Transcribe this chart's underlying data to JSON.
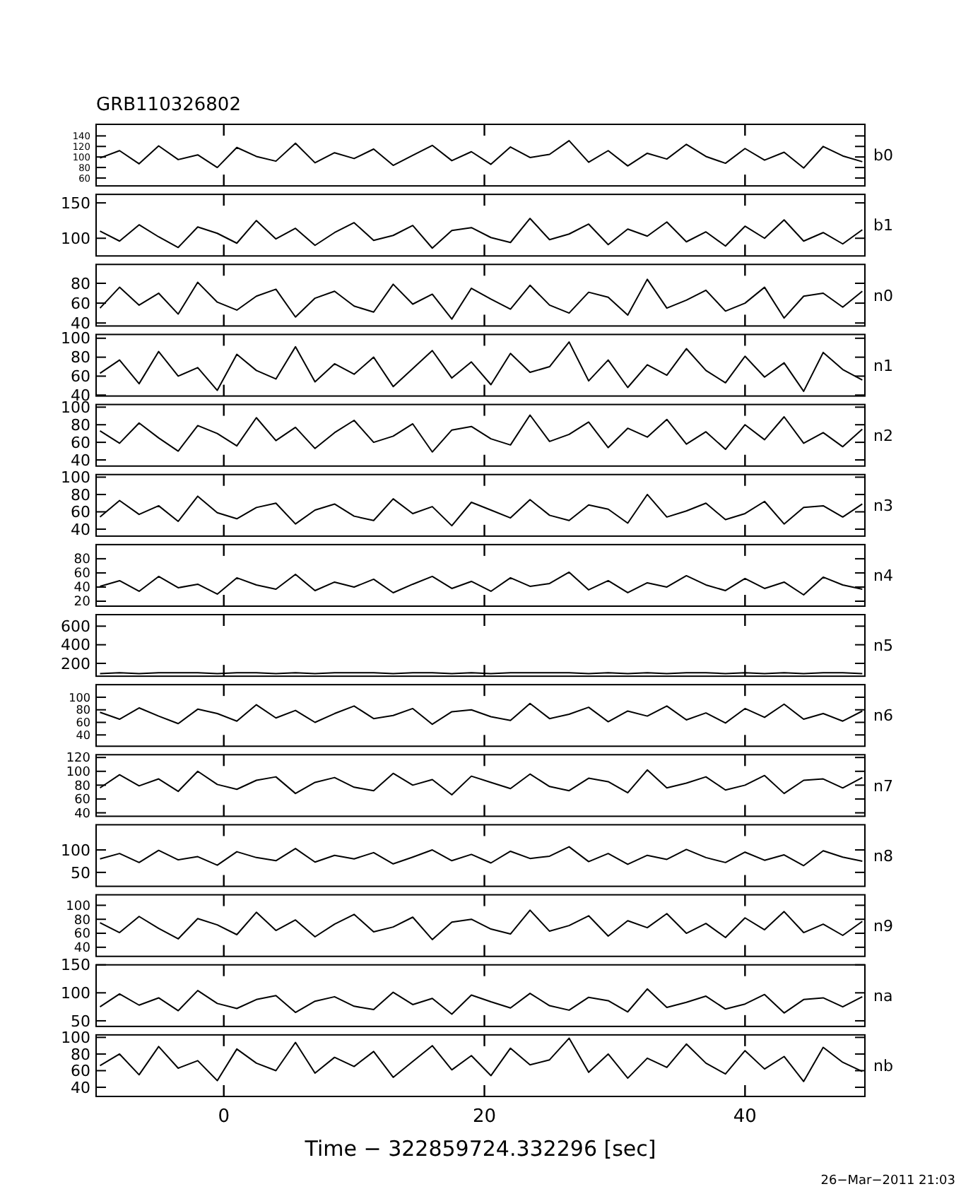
{
  "chart_data": [
    {
      "type": "line",
      "title": "GRB110326802",
      "tick_labels": "y",
      "xlim": [
        -9.8,
        49.2
      ],
      "xticks": [
        0,
        20,
        40
      ],
      "ylim": [
        45,
        162
      ],
      "yticks": [
        60,
        80,
        100,
        120,
        140
      ],
      "x": [
        -9.5,
        -8,
        -6.5,
        -5,
        -3.5,
        -2,
        -0.5,
        1,
        2.5,
        4,
        5.5,
        7,
        8.5,
        10,
        11.5,
        13,
        14.5,
        16,
        17.5,
        19,
        20.5,
        22,
        23.5,
        25,
        26.5,
        28,
        29.5,
        31,
        32.5,
        34,
        35.5,
        37,
        38.5,
        40,
        41.5,
        43,
        44.5,
        46,
        47.5,
        49
      ],
      "series": [
        {
          "name": "b0",
          "color": "#000000",
          "values": [
            98,
            112,
            87,
            121,
            95,
            104,
            80,
            118,
            101,
            92,
            126,
            89,
            108,
            97,
            115,
            84,
            103,
            122,
            93,
            110,
            86,
            119,
            99,
            105,
            131,
            90,
            112,
            83,
            107,
            96,
            124,
            101,
            88,
            116,
            94,
            109,
            79,
            120,
            102,
            91
          ]
        }
      ]
    },
    {
      "type": "line",
      "tick_labels": "y",
      "xlim": [
        -9.8,
        49.2
      ],
      "xticks": [
        0,
        20,
        40
      ],
      "ylim": [
        75,
        162
      ],
      "yticks": [
        100,
        150
      ],
      "x": [
        -9.5,
        -8,
        -6.5,
        -5,
        -3.5,
        -2,
        -0.5,
        1,
        2.5,
        4,
        5.5,
        7,
        8.5,
        10,
        11.5,
        13,
        14.5,
        16,
        17.5,
        19,
        20.5,
        22,
        23.5,
        25,
        26.5,
        28,
        29.5,
        31,
        32.5,
        34,
        35.5,
        37,
        38.5,
        40,
        41.5,
        43,
        44.5,
        46,
        47.5,
        49
      ],
      "series": [
        {
          "name": "b1",
          "color": "#000000",
          "values": [
            110,
            96,
            119,
            102,
            87,
            116,
            107,
            93,
            125,
            99,
            114,
            90,
            108,
            122,
            97,
            104,
            118,
            86,
            111,
            115,
            101,
            94,
            128,
            98,
            106,
            120,
            91,
            113,
            103,
            123,
            95,
            109,
            89,
            117,
            100,
            126,
            96,
            108,
            92,
            112
          ]
        }
      ]
    },
    {
      "type": "line",
      "tick_labels": "y",
      "xlim": [
        -9.8,
        49.2
      ],
      "xticks": [
        0,
        20,
        40
      ],
      "ylim": [
        37,
        99
      ],
      "yticks": [
        40,
        60,
        80
      ],
      "x": [
        -9.5,
        -8,
        -6.5,
        -5,
        -3.5,
        -2,
        -0.5,
        1,
        2.5,
        4,
        5.5,
        7,
        8.5,
        10,
        11.5,
        13,
        14.5,
        16,
        17.5,
        19,
        20.5,
        22,
        23.5,
        25,
        26.5,
        28,
        29.5,
        31,
        32.5,
        34,
        35.5,
        37,
        38.5,
        40,
        41.5,
        43,
        44.5,
        46,
        47.5,
        49
      ],
      "series": [
        {
          "name": "n0",
          "color": "#000000",
          "values": [
            55,
            76,
            58,
            70,
            49,
            81,
            61,
            53,
            67,
            74,
            46,
            65,
            72,
            57,
            51,
            79,
            59,
            69,
            44,
            75,
            64,
            54,
            78,
            58,
            50,
            71,
            66,
            48,
            84,
            55,
            63,
            73,
            52,
            60,
            76,
            45,
            67,
            70,
            56,
            72
          ]
        }
      ]
    },
    {
      "type": "line",
      "tick_labels": "y",
      "xlim": [
        -9.8,
        49.2
      ],
      "xticks": [
        0,
        20,
        40
      ],
      "ylim": [
        39,
        104
      ],
      "yticks": [
        40,
        60,
        80,
        100
      ],
      "x": [
        -9.5,
        -8,
        -6.5,
        -5,
        -3.5,
        -2,
        -0.5,
        1,
        2.5,
        4,
        5.5,
        7,
        8.5,
        10,
        11.5,
        13,
        14.5,
        16,
        17.5,
        19,
        20.5,
        22,
        23.5,
        25,
        26.5,
        28,
        29.5,
        31,
        32.5,
        34,
        35.5,
        37,
        38.5,
        40,
        41.5,
        43,
        44.5,
        46,
        47.5,
        49
      ],
      "series": [
        {
          "name": "n1",
          "color": "#000000",
          "values": [
            63,
            77,
            52,
            86,
            60,
            69,
            45,
            83,
            66,
            57,
            91,
            54,
            73,
            62,
            80,
            49,
            68,
            87,
            58,
            75,
            51,
            84,
            64,
            70,
            96,
            55,
            77,
            48,
            72,
            61,
            89,
            66,
            53,
            81,
            59,
            74,
            44,
            85,
            67,
            56
          ]
        }
      ]
    },
    {
      "type": "line",
      "tick_labels": "y",
      "xlim": [
        -9.8,
        49.2
      ],
      "xticks": [
        0,
        20,
        40
      ],
      "ylim": [
        33,
        103
      ],
      "yticks": [
        40,
        60,
        80,
        100
      ],
      "x": [
        -9.5,
        -8,
        -6.5,
        -5,
        -3.5,
        -2,
        -0.5,
        1,
        2.5,
        4,
        5.5,
        7,
        8.5,
        10,
        11.5,
        13,
        14.5,
        16,
        17.5,
        19,
        20.5,
        22,
        23.5,
        25,
        26.5,
        28,
        29.5,
        31,
        32.5,
        34,
        35.5,
        37,
        38.5,
        40,
        41.5,
        43,
        44.5,
        46,
        47.5,
        49
      ],
      "series": [
        {
          "name": "n2",
          "color": "#000000",
          "values": [
            73,
            59,
            82,
            65,
            50,
            79,
            70,
            56,
            88,
            62,
            77,
            53,
            71,
            85,
            60,
            67,
            81,
            49,
            74,
            78,
            64,
            57,
            91,
            61,
            69,
            83,
            54,
            76,
            66,
            86,
            58,
            72,
            52,
            80,
            63,
            89,
            59,
            71,
            55,
            75
          ]
        }
      ]
    },
    {
      "type": "line",
      "tick_labels": "y",
      "xlim": [
        -9.8,
        49.2
      ],
      "xticks": [
        0,
        20,
        40
      ],
      "ylim": [
        32,
        103
      ],
      "yticks": [
        40,
        60,
        80,
        100
      ],
      "x": [
        -9.5,
        -8,
        -6.5,
        -5,
        -3.5,
        -2,
        -0.5,
        1,
        2.5,
        4,
        5.5,
        7,
        8.5,
        10,
        11.5,
        13,
        14.5,
        16,
        17.5,
        19,
        20.5,
        22,
        23.5,
        25,
        26.5,
        28,
        29.5,
        31,
        32.5,
        34,
        35.5,
        37,
        38.5,
        40,
        41.5,
        43,
        44.5,
        46,
        47.5,
        49
      ],
      "series": [
        {
          "name": "n3",
          "color": "#000000",
          "values": [
            54,
            73,
            57,
            67,
            49,
            78,
            59,
            52,
            65,
            70,
            46,
            62,
            69,
            55,
            50,
            75,
            58,
            66,
            44,
            71,
            62,
            53,
            74,
            56,
            50,
            68,
            63,
            47,
            80,
            54,
            61,
            70,
            51,
            58,
            72,
            46,
            65,
            67,
            54,
            69
          ]
        }
      ]
    },
    {
      "type": "line",
      "tick_labels": "y",
      "xlim": [
        -9.8,
        49.2
      ],
      "xticks": [
        0,
        20,
        40
      ],
      "ylim": [
        13,
        100
      ],
      "yticks": [
        20,
        40,
        60,
        80
      ],
      "x": [
        -9.5,
        -8,
        -6.5,
        -5,
        -3.5,
        -2,
        -0.5,
        1,
        2.5,
        4,
        5.5,
        7,
        8.5,
        10,
        11.5,
        13,
        14.5,
        16,
        17.5,
        19,
        20.5,
        22,
        23.5,
        25,
        26.5,
        28,
        29.5,
        31,
        32.5,
        34,
        35.5,
        37,
        38.5,
        40,
        41.5,
        43,
        44.5,
        46,
        47.5,
        49
      ],
      "series": [
        {
          "name": "n4",
          "color": "#000000",
          "values": [
            41,
            49,
            34,
            55,
            39,
            44,
            30,
            53,
            43,
            37,
            58,
            35,
            47,
            40,
            51,
            32,
            44,
            55,
            38,
            48,
            34,
            53,
            41,
            45,
            61,
            36,
            49,
            32,
            46,
            40,
            56,
            43,
            35,
            52,
            38,
            47,
            29,
            54,
            43,
            37
          ]
        }
      ]
    },
    {
      "type": "line",
      "tick_labels": "y",
      "xlim": [
        -9.8,
        49.2
      ],
      "xticks": [
        0,
        20,
        40
      ],
      "ylim": [
        62,
        724
      ],
      "yticks": [
        200,
        400,
        600
      ],
      "x": [
        -9.5,
        -8,
        -6.5,
        -5,
        -3.5,
        -2,
        -0.5,
        1,
        2.5,
        4,
        5.5,
        7,
        8.5,
        10,
        11.5,
        13,
        14.5,
        16,
        17.5,
        19,
        20.5,
        22,
        23.5,
        25,
        26.5,
        28,
        29.5,
        31,
        32.5,
        34,
        35.5,
        37,
        38.5,
        40,
        41.5,
        43,
        44.5,
        46,
        47.5,
        49
      ],
      "series": [
        {
          "name": "n5",
          "color": "#000000",
          "values": [
            90,
            100,
            90,
            100,
            100,
            100,
            90,
            100,
            100,
            90,
            100,
            90,
            100,
            100,
            100,
            90,
            100,
            100,
            90,
            100,
            90,
            100,
            100,
            100,
            100,
            90,
            100,
            90,
            100,
            90,
            100,
            100,
            90,
            100,
            90,
            100,
            90,
            100,
            100,
            90
          ]
        }
      ]
    },
    {
      "type": "line",
      "tick_labels": "y",
      "xlim": [
        -9.8,
        49.2
      ],
      "xticks": [
        0,
        20,
        40
      ],
      "ylim": [
        22,
        120
      ],
      "yticks": [
        40,
        60,
        80,
        100
      ],
      "x": [
        -9.5,
        -8,
        -6.5,
        -5,
        -3.5,
        -2,
        -0.5,
        1,
        2.5,
        4,
        5.5,
        7,
        8.5,
        10,
        11.5,
        13,
        14.5,
        16,
        17.5,
        19,
        20.5,
        22,
        23.5,
        25,
        26.5,
        28,
        29.5,
        31,
        32.5,
        34,
        35.5,
        37,
        38.5,
        40,
        41.5,
        43,
        44.5,
        46,
        47.5,
        49
      ],
      "series": [
        {
          "name": "n6",
          "color": "#000000",
          "values": [
            76,
            65,
            83,
            70,
            58,
            81,
            74,
            62,
            88,
            67,
            79,
            60,
            74,
            86,
            66,
            71,
            82,
            57,
            77,
            80,
            69,
            63,
            90,
            66,
            73,
            84,
            61,
            78,
            70,
            86,
            64,
            75,
            59,
            82,
            68,
            89,
            65,
            74,
            62,
            78
          ]
        }
      ]
    },
    {
      "type": "line",
      "tick_labels": "y",
      "xlim": [
        -9.8,
        49.2
      ],
      "xticks": [
        0,
        20,
        40
      ],
      "ylim": [
        35,
        124
      ],
      "yticks": [
        40,
        60,
        80,
        100,
        120
      ],
      "x": [
        -9.5,
        -8,
        -6.5,
        -5,
        -3.5,
        -2,
        -0.5,
        1,
        2.5,
        4,
        5.5,
        7,
        8.5,
        10,
        11.5,
        13,
        14.5,
        16,
        17.5,
        19,
        20.5,
        22,
        23.5,
        25,
        26.5,
        28,
        29.5,
        31,
        32.5,
        34,
        35.5,
        37,
        38.5,
        40,
        41.5,
        43,
        44.5,
        46,
        47.5,
        49
      ],
      "series": [
        {
          "name": "n7",
          "color": "#000000",
          "values": [
            76,
            95,
            79,
            89,
            71,
            100,
            81,
            74,
            87,
            92,
            68,
            84,
            91,
            77,
            72,
            97,
            80,
            88,
            66,
            93,
            84,
            75,
            96,
            78,
            72,
            90,
            85,
            69,
            102,
            76,
            83,
            92,
            73,
            80,
            94,
            68,
            87,
            89,
            76,
            91
          ]
        }
      ]
    },
    {
      "type": "line",
      "tick_labels": "y",
      "xlim": [
        -9.8,
        49.2
      ],
      "xticks": [
        0,
        20,
        40
      ],
      "ylim": [
        19,
        156
      ],
      "yticks": [
        50,
        100
      ],
      "x": [
        -9.5,
        -8,
        -6.5,
        -5,
        -3.5,
        -2,
        -0.5,
        1,
        2.5,
        4,
        5.5,
        7,
        8.5,
        10,
        11.5,
        13,
        14.5,
        16,
        17.5,
        19,
        20.5,
        22,
        23.5,
        25,
        26.5,
        28,
        29.5,
        31,
        32.5,
        34,
        35.5,
        37,
        38.5,
        40,
        41.5,
        43,
        44.5,
        46,
        47.5,
        49
      ],
      "series": [
        {
          "name": "n8",
          "color": "#000000",
          "values": [
            80,
            92,
            72,
            99,
            78,
            85,
            66,
            96,
            83,
            76,
            103,
            73,
            88,
            80,
            94,
            69,
            84,
            100,
            76,
            90,
            71,
            97,
            81,
            86,
            107,
            74,
            92,
            68,
            88,
            79,
            101,
            83,
            72,
            95,
            77,
            89,
            65,
            98,
            84,
            75
          ]
        }
      ]
    },
    {
      "type": "line",
      "tick_labels": "y",
      "xlim": [
        -9.8,
        49.2
      ],
      "xticks": [
        0,
        20,
        40
      ],
      "ylim": [
        27,
        115
      ],
      "yticks": [
        40,
        60,
        80,
        100
      ],
      "x": [
        -9.5,
        -8,
        -6.5,
        -5,
        -3.5,
        -2,
        -0.5,
        1,
        2.5,
        4,
        5.5,
        7,
        8.5,
        10,
        11.5,
        13,
        14.5,
        16,
        17.5,
        19,
        20.5,
        22,
        23.5,
        25,
        26.5,
        28,
        29.5,
        31,
        32.5,
        34,
        35.5,
        37,
        38.5,
        40,
        41.5,
        43,
        44.5,
        46,
        47.5,
        49
      ],
      "series": [
        {
          "name": "n9",
          "color": "#000000",
          "values": [
            75,
            61,
            84,
            67,
            52,
            81,
            72,
            58,
            90,
            64,
            79,
            55,
            73,
            87,
            62,
            69,
            83,
            51,
            76,
            80,
            66,
            59,
            93,
            63,
            71,
            85,
            56,
            78,
            68,
            88,
            60,
            74,
            54,
            82,
            65,
            91,
            61,
            73,
            57,
            77
          ]
        }
      ]
    },
    {
      "type": "line",
      "tick_labels": "y",
      "xlim": [
        -9.8,
        49.2
      ],
      "xticks": [
        0,
        20,
        40
      ],
      "ylim": [
        40,
        150
      ],
      "yticks": [
        50,
        100,
        150
      ],
      "x": [
        -9.5,
        -8,
        -6.5,
        -5,
        -3.5,
        -2,
        -0.5,
        1,
        2.5,
        4,
        5.5,
        7,
        8.5,
        10,
        11.5,
        13,
        14.5,
        16,
        17.5,
        19,
        20.5,
        22,
        23.5,
        25,
        26.5,
        28,
        29.5,
        31,
        32.5,
        34,
        35.5,
        37,
        38.5,
        40,
        41.5,
        43,
        44.5,
        46,
        47.5,
        49
      ],
      "series": [
        {
          "name": "na",
          "color": "#000000",
          "values": [
            75,
            98,
            78,
            91,
            68,
            104,
            81,
            72,
            88,
            95,
            65,
            85,
            93,
            76,
            70,
            101,
            79,
            90,
            62,
            96,
            84,
            73,
            99,
            77,
            69,
            92,
            86,
            66,
            107,
            74,
            83,
            94,
            71,
            80,
            97,
            64,
            88,
            91,
            75,
            93
          ]
        }
      ]
    },
    {
      "type": "line",
      "xlabel": "Time − 322859724.332296 [sec]",
      "annotations": [
        "26−Mar−2011 21:03"
      ],
      "xlim": [
        -9.8,
        49.2
      ],
      "xticks": [
        0,
        20,
        40
      ],
      "ylim": [
        29,
        103
      ],
      "yticks": [
        40,
        60,
        80,
        100
      ],
      "x": [
        -9.5,
        -8,
        -6.5,
        -5,
        -3.5,
        -2,
        -0.5,
        1,
        2.5,
        4,
        5.5,
        7,
        8.5,
        10,
        11.5,
        13,
        14.5,
        16,
        17.5,
        19,
        20.5,
        22,
        23.5,
        25,
        26.5,
        28,
        29.5,
        31,
        32.5,
        34,
        35.5,
        37,
        38.5,
        40,
        41.5,
        43,
        44.5,
        46,
        47.5,
        49
      ],
      "series": [
        {
          "name": "nb",
          "color": "#000000",
          "values": [
            66,
            80,
            55,
            89,
            63,
            72,
            48,
            86,
            69,
            60,
            94,
            57,
            76,
            65,
            83,
            52,
            71,
            90,
            61,
            78,
            54,
            87,
            67,
            73,
            99,
            58,
            80,
            51,
            75,
            64,
            92,
            69,
            56,
            84,
            62,
            77,
            47,
            88,
            70,
            59
          ]
        }
      ]
    }
  ]
}
